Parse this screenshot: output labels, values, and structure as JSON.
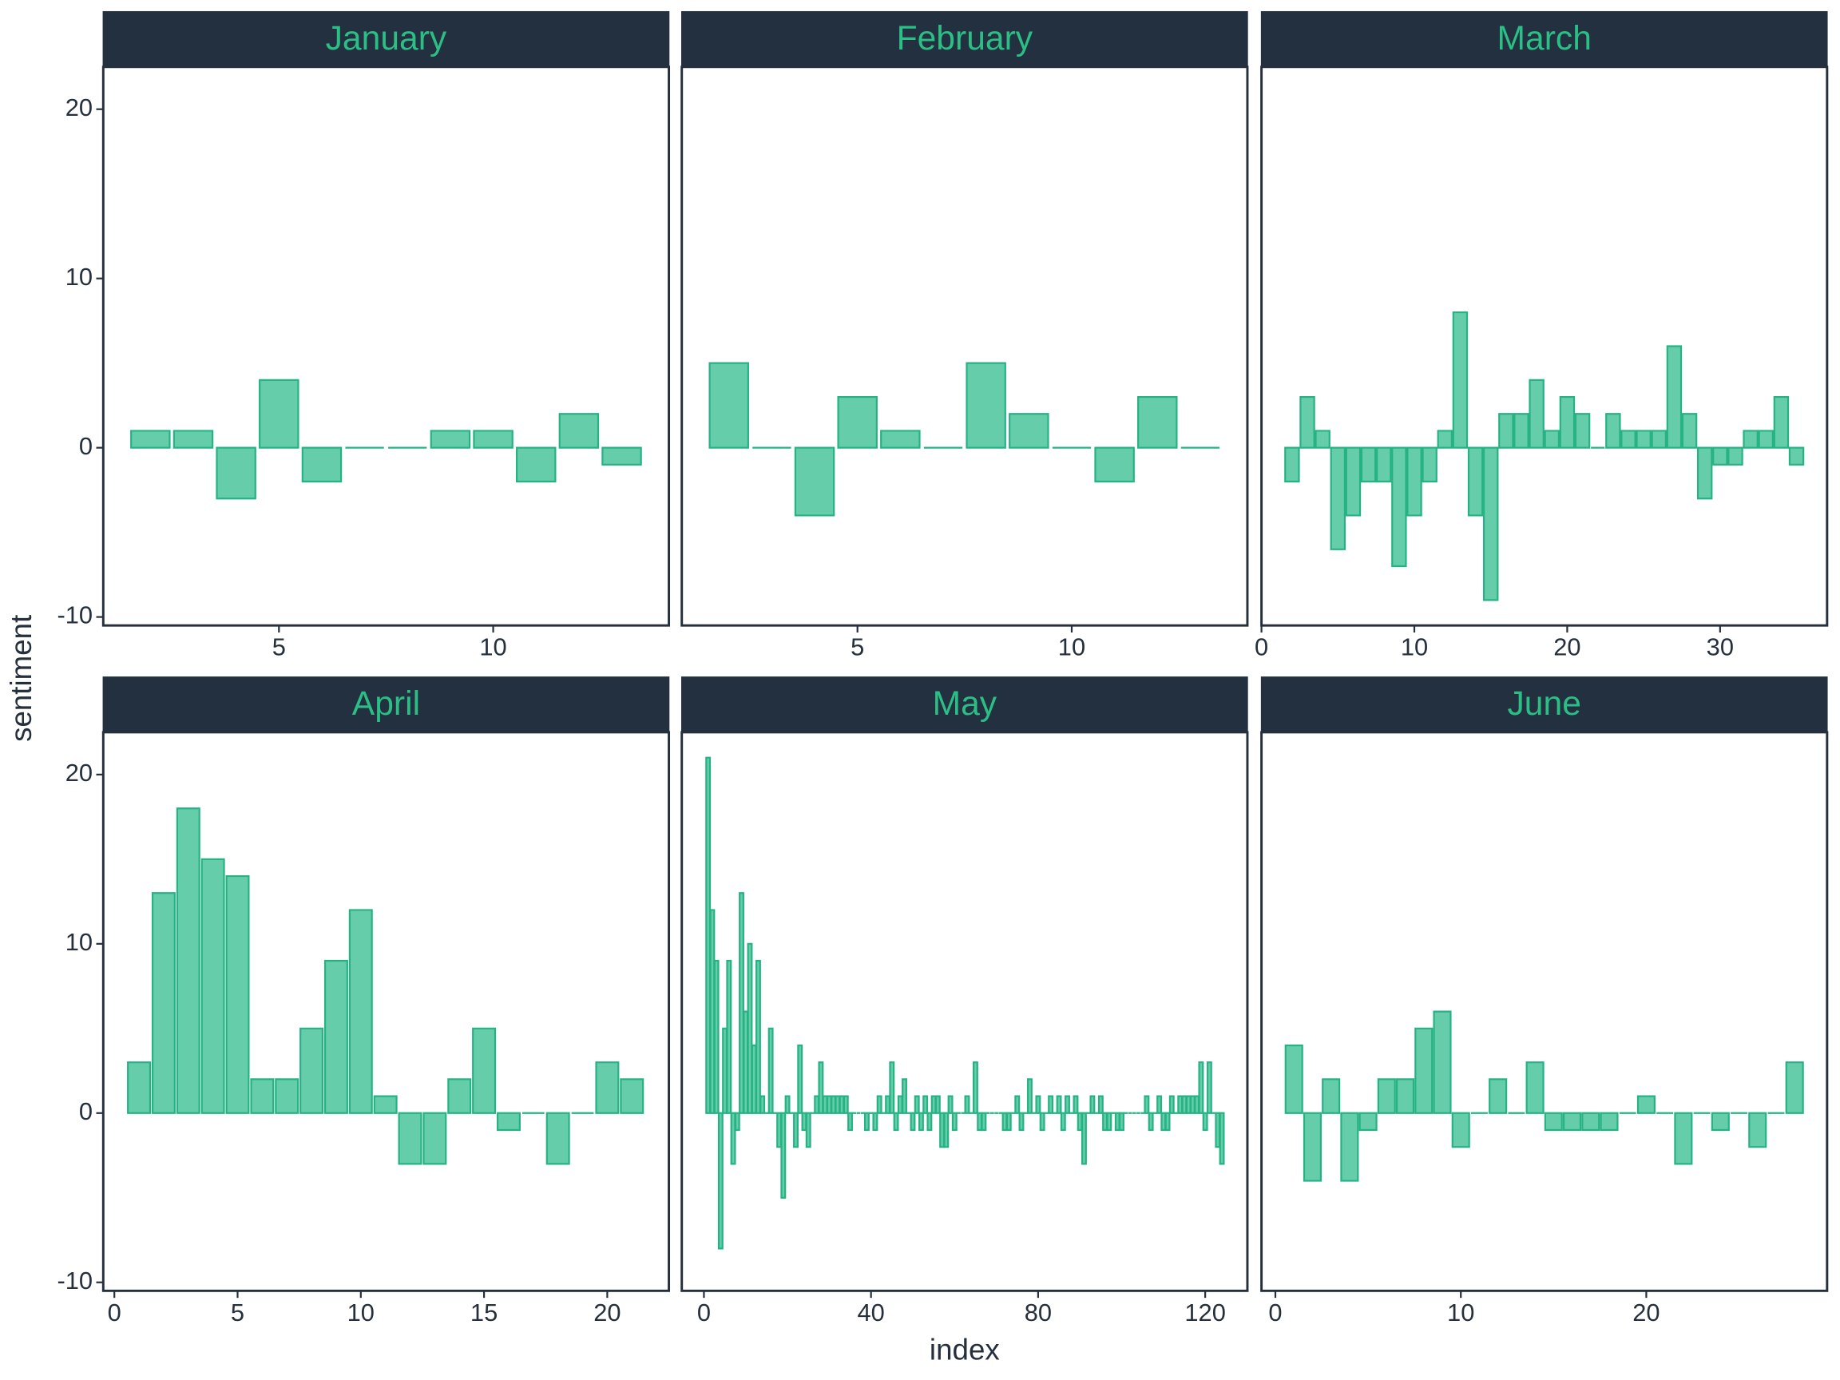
{
  "xlabel": "index",
  "ylabel": "sentiment",
  "chart_data": [
    {
      "type": "bar",
      "title": "January",
      "color": "#66cdaa",
      "edgecolor": "#26b383",
      "x": [
        2,
        3,
        4,
        5,
        6,
        7,
        8,
        9,
        10,
        11,
        12,
        13
      ],
      "values": [
        1,
        1,
        -3,
        4,
        -2,
        0,
        0,
        1,
        1,
        -2,
        2,
        -1
      ],
      "xlim": [
        0.9,
        14.1
      ],
      "xticks": [
        5,
        10
      ],
      "ylim": [
        -10.5,
        22.5
      ],
      "yticks": [
        -10,
        0,
        10,
        20
      ]
    },
    {
      "type": "bar",
      "title": "February",
      "color": "#66cdaa",
      "edgecolor": "#26b383",
      "x": [
        2,
        3,
        4,
        5,
        6,
        7,
        8,
        9,
        10,
        11,
        12,
        13
      ],
      "values": [
        5,
        0,
        -4,
        3,
        1,
        0,
        5,
        2,
        0,
        -2,
        3,
        0
      ],
      "xlim": [
        0.9,
        14.1
      ],
      "xticks": [
        5,
        10
      ],
      "ylim": [
        -10.5,
        22.5
      ]
    },
    {
      "type": "bar",
      "title": "March",
      "color": "#66cdaa",
      "edgecolor": "#26b383",
      "x": [
        2,
        3,
        4,
        5,
        6,
        7,
        8,
        9,
        10,
        11,
        12,
        13,
        14,
        15,
        16,
        17,
        18,
        19,
        20,
        21,
        22,
        23,
        24,
        25,
        26,
        27,
        28,
        29,
        30,
        31,
        32,
        33,
        34,
        35
      ],
      "values": [
        -2,
        3,
        1,
        -6,
        -4,
        -2,
        -2,
        -7,
        -4,
        -2,
        1,
        8,
        -4,
        -9,
        2,
        2,
        4,
        1,
        3,
        2,
        0,
        2,
        1,
        1,
        1,
        6,
        2,
        -3,
        -1,
        -1,
        1,
        1,
        3,
        -1
      ],
      "xlim": [
        0,
        37
      ],
      "xticks": [
        0,
        10,
        20,
        30
      ],
      "ylim": [
        -10.5,
        22.5
      ]
    },
    {
      "type": "bar",
      "title": "April",
      "color": "#66cdaa",
      "edgecolor": "#26b383",
      "x": [
        1,
        2,
        3,
        4,
        5,
        6,
        7,
        8,
        9,
        10,
        11,
        12,
        13,
        14,
        15,
        16,
        17,
        18,
        19,
        20,
        21
      ],
      "values": [
        3,
        13,
        18,
        15,
        14,
        2,
        2,
        5,
        9,
        12,
        1,
        -3,
        -3,
        2,
        5,
        -1,
        0,
        -3,
        0,
        3,
        2
      ],
      "xlim": [
        -0.45,
        22.5
      ],
      "xticks": [
        0,
        5,
        10,
        15,
        20
      ],
      "ylim": [
        -10.5,
        22.5
      ],
      "yticks": [
        -10,
        0,
        10,
        20
      ]
    },
    {
      "type": "bar",
      "title": "May",
      "color": "#66cdaa",
      "edgecolor": "#26b383",
      "x": [
        1,
        2,
        3,
        4,
        5,
        6,
        7,
        8,
        9,
        10,
        11,
        12,
        13,
        14,
        15,
        16,
        17,
        18,
        19,
        20,
        21,
        22,
        23,
        24,
        25,
        26,
        27,
        28,
        29,
        30,
        31,
        32,
        33,
        34,
        35,
        36,
        37,
        38,
        39,
        40,
        41,
        42,
        43,
        44,
        45,
        46,
        47,
        48,
        49,
        50,
        51,
        52,
        53,
        54,
        55,
        56,
        57,
        58,
        59,
        60,
        61,
        62,
        63,
        64,
        65,
        66,
        67,
        68,
        69,
        70,
        71,
        72,
        73,
        74,
        75,
        76,
        77,
        78,
        79,
        80,
        81,
        82,
        83,
        84,
        85,
        86,
        87,
        88,
        89,
        90,
        91,
        92,
        93,
        94,
        95,
        96,
        97,
        98,
        99,
        100,
        101,
        102,
        103,
        104,
        105,
        106,
        107,
        108,
        109,
        110,
        111,
        112,
        113,
        114,
        115,
        116,
        117,
        118,
        119,
        120,
        121,
        122,
        123,
        124
      ],
      "values": [
        21,
        12,
        9,
        -8,
        5,
        9,
        -3,
        -1,
        13,
        6,
        10,
        4,
        9,
        1,
        0,
        5,
        0,
        -2,
        -5,
        1,
        0,
        -2,
        4,
        -1,
        -2,
        0,
        1,
        3,
        1,
        1,
        1,
        1,
        1,
        1,
        -1,
        0,
        0,
        0,
        -1,
        0,
        -1,
        1,
        0,
        1,
        3,
        -1,
        1,
        2,
        0,
        -1,
        1,
        -1,
        1,
        -1,
        1,
        1,
        -2,
        -2,
        1,
        -1,
        0,
        0,
        1,
        0,
        3,
        -1,
        -1,
        0,
        0,
        0,
        0,
        -1,
        -1,
        0,
        1,
        -1,
        0,
        2,
        0,
        1,
        -1,
        0,
        1,
        0,
        1,
        -1,
        1,
        0,
        1,
        -1,
        -3,
        0,
        1,
        0,
        1,
        -1,
        -1,
        0,
        -1,
        -1,
        0,
        0,
        0,
        0,
        0,
        1,
        -1,
        0,
        1,
        -1,
        -1,
        1,
        0,
        1,
        1,
        1,
        1,
        1,
        3,
        -1,
        3,
        0,
        -2,
        -3
      ],
      "xlim": [
        -5.3,
        130.1
      ],
      "xticks": [
        0,
        40,
        80,
        120
      ],
      "ylim": [
        -10.5,
        22.5
      ]
    },
    {
      "type": "bar",
      "title": "June",
      "color": "#66cdaa",
      "edgecolor": "#26b383",
      "x": [
        1,
        2,
        3,
        4,
        5,
        6,
        7,
        8,
        9,
        10,
        11,
        12,
        13,
        14,
        15,
        16,
        17,
        18,
        19,
        20,
        21,
        22,
        23,
        24,
        25,
        26,
        27,
        28
      ],
      "values": [
        4,
        -4,
        2,
        -4,
        -1,
        2,
        2,
        5,
        6,
        -2,
        0,
        2,
        0,
        3,
        -1,
        -1,
        -1,
        -1,
        0,
        1,
        0,
        -3,
        0,
        -1,
        0,
        -2,
        0,
        3
      ],
      "xlim": [
        -0.75,
        29.75
      ],
      "xticks": [
        0,
        10,
        20
      ],
      "ylim": [
        -10.5,
        22.5
      ]
    }
  ]
}
